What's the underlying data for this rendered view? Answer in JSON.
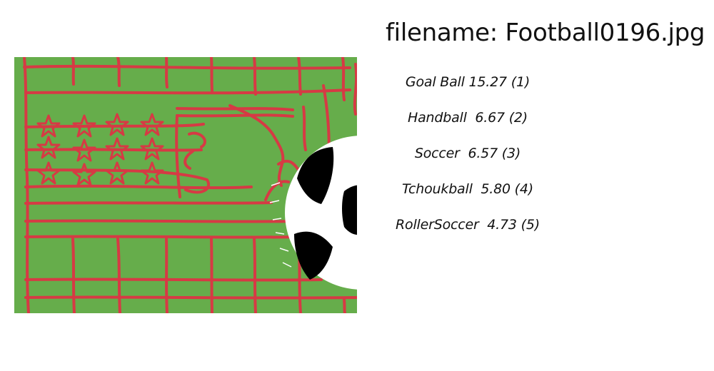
{
  "title": "filename: Football0196.jpg",
  "image": {
    "icon": "soccer-net-illustration",
    "colors": {
      "grass": "#66ad4b",
      "net": "#d63a44",
      "ball_white": "#ffffff",
      "ball_black": "#000000"
    }
  },
  "predictions": [
    {
      "text": "Goal Ball 15.27 (1)"
    },
    {
      "text": "Handball  6.67 (2)"
    },
    {
      "text": "Soccer  6.57 (3)"
    },
    {
      "text": "Tchoukball  5.80 (4)"
    },
    {
      "text": "RollerSoccer  4.73 (5)"
    }
  ]
}
